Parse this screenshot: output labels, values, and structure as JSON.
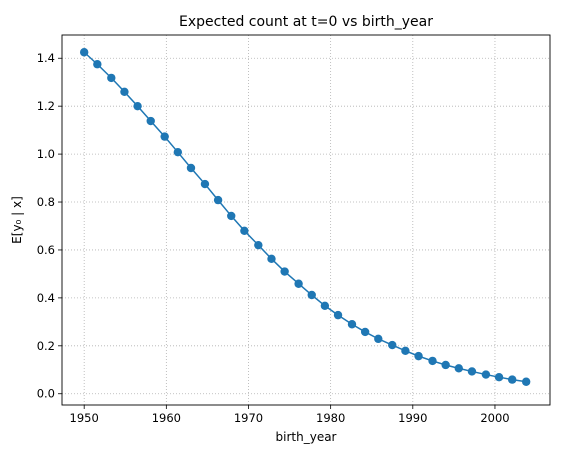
{
  "chart_data": {
    "type": "line",
    "title": "Expected count at t=0 vs birth_year",
    "xlabel": "birth_year",
    "ylabel": "E[y₀ | x]",
    "xlim": [
      1947.3,
      2006.7
    ],
    "ylim": [
      -0.047,
      1.497
    ],
    "xticks": [
      1950,
      1960,
      1970,
      1980,
      1990,
      2000
    ],
    "yticks": [
      0.0,
      0.2,
      0.4,
      0.6,
      0.8,
      1.0,
      1.2,
      1.4
    ],
    "ytick_labels": [
      "0.0",
      "0.2",
      "0.4",
      "0.6",
      "0.8",
      "1.0",
      "1.2",
      "1.4"
    ],
    "grid": true,
    "markers": true,
    "color": "#1f77b4",
    "series": [
      {
        "x": [
          1950.0,
          1951.6,
          1953.3,
          1954.9,
          1956.5,
          1958.1,
          1959.8,
          1961.4,
          1963.0,
          1964.7,
          1966.3,
          1967.9,
          1969.5,
          1971.2,
          1972.8,
          1974.4,
          1976.1,
          1977.7,
          1979.3,
          1980.9,
          1982.6,
          1984.2,
          1985.8,
          1987.5,
          1989.1,
          1990.7,
          1992.4,
          1994.0,
          1995.6,
          1997.2,
          1998.9,
          2000.5,
          2002.1,
          2003.8
        ],
        "y": [
          1.425,
          1.375,
          1.318,
          1.26,
          1.2,
          1.138,
          1.073,
          1.008,
          0.942,
          0.875,
          0.808,
          0.742,
          0.68,
          0.62,
          0.563,
          0.51,
          0.459,
          0.412,
          0.367,
          0.328,
          0.29,
          0.258,
          0.229,
          0.203,
          0.179,
          0.157,
          0.137,
          0.12,
          0.106,
          0.093,
          0.08,
          0.069,
          0.059,
          0.05
        ]
      }
    ]
  }
}
